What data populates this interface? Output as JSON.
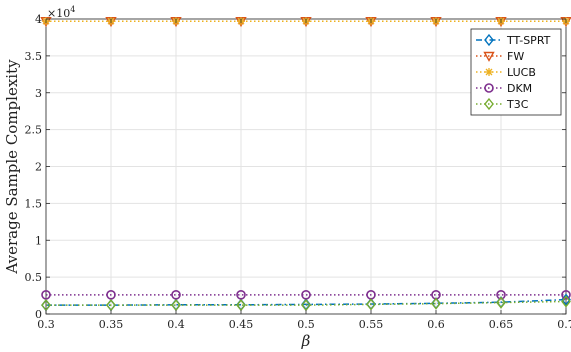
{
  "chart_data": {
    "type": "line",
    "xlabel": "β",
    "ylabel": "Average Sample Complexity",
    "y_exponent": "×10",
    "y_exponent_power": "4",
    "xlim": [
      0.3,
      0.7
    ],
    "ylim": [
      0,
      40000
    ],
    "x_ticks": [
      "0.3",
      "0.35",
      "0.4",
      "0.45",
      "0.5",
      "0.55",
      "0.6",
      "0.65",
      "0.7"
    ],
    "y_ticks": [
      "0",
      "0.5",
      "1",
      "1.5",
      "2",
      "2.5",
      "3",
      "3.5",
      "4"
    ],
    "grid": true,
    "legend_position": "top-right",
    "x": [
      0.3,
      0.35,
      0.4,
      0.45,
      0.5,
      0.55,
      0.6,
      0.65,
      0.7
    ],
    "series": [
      {
        "name": "TT-SPRT",
        "color": "#0072BD",
        "dash": "dash-dot",
        "marker": "diamond",
        "values": [
          1200,
          1200,
          1250,
          1250,
          1300,
          1350,
          1450,
          1600,
          1950
        ]
      },
      {
        "name": "FW",
        "color": "#D95319",
        "dash": "dotted",
        "marker": "triangle-down",
        "values": [
          39700,
          39700,
          39700,
          39700,
          39700,
          39700,
          39700,
          39700,
          39700
        ]
      },
      {
        "name": "LUCB",
        "color": "#EDB120",
        "dash": "dotted",
        "marker": "asterisk",
        "values": [
          39700,
          39700,
          39700,
          39700,
          39700,
          39700,
          39700,
          39700,
          39700
        ]
      },
      {
        "name": "DKM",
        "color": "#7E2F8E",
        "dash": "dotted",
        "marker": "circle",
        "values": [
          2600,
          2600,
          2600,
          2600,
          2600,
          2600,
          2600,
          2600,
          2600
        ]
      },
      {
        "name": "T3C",
        "color": "#77AC30",
        "dash": "dotted",
        "marker": "diamond",
        "values": [
          1200,
          1200,
          1200,
          1200,
          1200,
          1300,
          1400,
          1550,
          1700
        ]
      }
    ]
  }
}
